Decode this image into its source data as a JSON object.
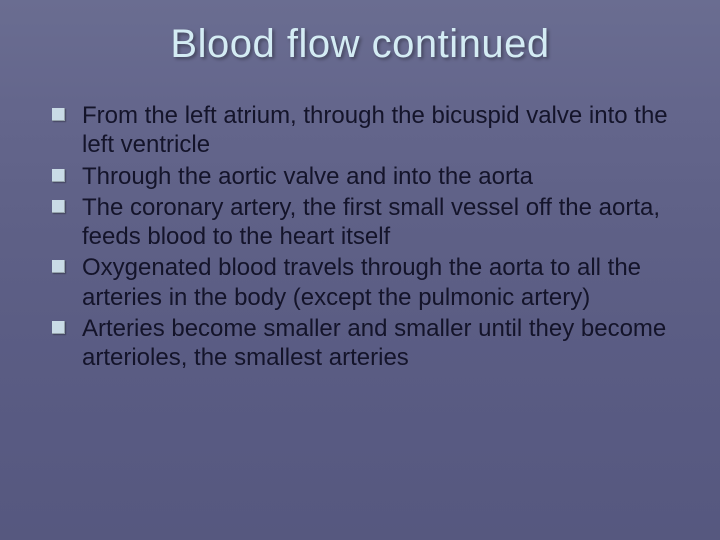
{
  "slide": {
    "title": "Blood flow continued",
    "title_color": "#d4ecf4",
    "title_fontsize": 40,
    "background_gradient_top": "#6a6d91",
    "background_gradient_bottom": "#56587f",
    "bullet_marker_color": "#c9dbe6",
    "body_text_color": "#14142a",
    "body_fontsize": 24,
    "bullets": [
      "From the left atrium, through the bicuspid valve into the left ventricle",
      "Through the aortic valve and into the aorta",
      "The coronary artery, the first small vessel off the aorta, feeds blood to the heart itself",
      "Oxygenated blood travels through the aorta to all the arteries in the body (except the pulmonic artery)",
      "Arteries become smaller and smaller until they become arterioles, the smallest arteries"
    ]
  }
}
